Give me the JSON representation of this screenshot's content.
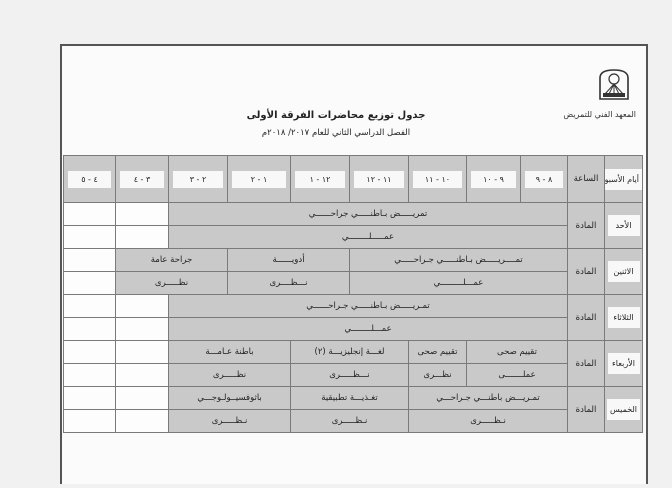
{
  "header": {
    "institute": "المعهد الفني للتمريض",
    "title": "جدول توزيع محاضرات الفرقة الأولى",
    "subtitle": "الفصل الدراسي الثاني للعام ٢٠١٧/ ٢٠١٨م",
    "logo_text": "المعهد الفني للتمريض"
  },
  "table": {
    "day_header": "أيام الأسبوع",
    "hour_header": "الساعة",
    "hours": [
      "٨ - ٩",
      "٩ - ١٠",
      "١٠ - ١١",
      "١١ - ١٢",
      "١٢ - ١",
      "١ - ٢",
      "٢ - ٣",
      "٣ - ٤",
      "٤ - ٥"
    ],
    "subject_label": "المادة",
    "days": [
      {
        "day": "الأحد",
        "top": [
          {
            "text": "تمريـــــض بـاطنـــــي جراحــــــي",
            "span": 7
          },
          {
            "text": "",
            "span": 1
          },
          {
            "text": "",
            "span": 1
          }
        ],
        "bottom": [
          {
            "text": "عمـــــلــــــــي",
            "span": 7
          },
          {
            "text": "",
            "span": 1
          },
          {
            "text": "",
            "span": 1
          }
        ]
      },
      {
        "day": "الاثنين",
        "top": [
          {
            "text": "تمــــريـــــض بـاطنـــــي جـراحـــــي",
            "span": 4
          },
          {
            "text": "أدويــــــة",
            "span": 2
          },
          {
            "text": "جراحة عامة",
            "span": 2
          },
          {
            "text": "",
            "span": 1
          }
        ],
        "bottom": [
          {
            "text": "عمـــلـــــــــي",
            "span": 4
          },
          {
            "text": "نـــظــــرى",
            "span": 2
          },
          {
            "text": "نظـــــرى",
            "span": 2
          },
          {
            "text": "",
            "span": 1
          }
        ]
      },
      {
        "day": "الثلاثاء",
        "top": [
          {
            "text": "تمـريـــــض بـاطنـــــي جـراحــــــي",
            "span": 7
          },
          {
            "text": "",
            "span": 1
          },
          {
            "text": "",
            "span": 1
          }
        ],
        "bottom": [
          {
            "text": "عمـــلــــــــي",
            "span": 7
          },
          {
            "text": "",
            "span": 1
          },
          {
            "text": "",
            "span": 1
          }
        ]
      },
      {
        "day": "الأربعاء",
        "top": [
          {
            "text": "تقييم صحى",
            "span": 2
          },
          {
            "text": "تقييم صحى",
            "span": 1
          },
          {
            "text": "لغـــة إنجليزيـــة (٢)",
            "span": 2
          },
          {
            "text": "باطنة عـامـــة",
            "span": 2
          },
          {
            "text": "",
            "span": 1
          },
          {
            "text": "",
            "span": 1
          }
        ],
        "bottom": [
          {
            "text": "عملـــــــى",
            "span": 2
          },
          {
            "text": "نظـــرى",
            "span": 1
          },
          {
            "text": "نـــظـــــرى",
            "span": 2
          },
          {
            "text": "نظـــــرى",
            "span": 2
          },
          {
            "text": "",
            "span": 1
          },
          {
            "text": "",
            "span": 1
          }
        ]
      },
      {
        "day": "الخميس",
        "top": [
          {
            "text": "تمـريـــض باطنـــي جـراحـــي",
            "span": 3
          },
          {
            "text": "تغـذيـــة تطبيقية",
            "span": 2
          },
          {
            "text": "باثوفسيــولـوجـــي",
            "span": 2
          },
          {
            "text": "",
            "span": 1
          },
          {
            "text": "",
            "span": 1
          }
        ],
        "bottom": [
          {
            "text": "نـظـــــرى",
            "span": 3
          },
          {
            "text": "نـظـــــرى",
            "span": 2
          },
          {
            "text": "نـظـــــرى",
            "span": 2
          },
          {
            "text": "",
            "span": 1
          },
          {
            "text": "",
            "span": 1
          }
        ]
      }
    ]
  },
  "colors": {
    "cell_gray": "#c9c9c9",
    "cell_white": "#fdfdfd",
    "border": "#7a7a7a"
  }
}
